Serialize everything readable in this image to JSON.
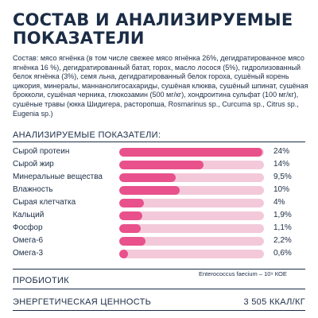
{
  "title": "СОСТАВ И АНАЛИЗИРУЕМЫЕ ПОКАЗАТЕЛИ",
  "composition": "Состав: мясо ягнёнка (в том числе свежее мясо ягнёнка 26%, дегидратированное мясо ягнёнка 16 %), дегидратированный батат, горох, масло лосося (5%), гидролизованный белок ягнёнка (3%), семя льна, дегидратированный белок гороха, сушёный корень цикория, минералы, маннанолигосахариды, сушёная клюква, сушёный шпинат, сушёная брокколи, сушёная черника, глюкозамин (500 мг/кг), хондроитина сульфат (100 мг/кг), сушёные травы (юкка Шидигера, расторопша, Rosmarinus sp., Curcuma sp., Citrus sp., Eugenia sp.)",
  "analysis": {
    "heading": "АНАЛИЗИРУЕМЫЕ ПОКАЗАТЕЛИ:",
    "items": [
      {
        "label": "Сырой протеин",
        "value": "24%",
        "fill": 0.99
      },
      {
        "label": "Сырой жир",
        "value": "14%",
        "fill": 0.58
      },
      {
        "label": "Минеральные вещества",
        "value": "9,5%",
        "fill": 0.39
      },
      {
        "label": "Влажность",
        "value": "10%",
        "fill": 0.42
      },
      {
        "label": "Сырая клетчатка",
        "value": "4%",
        "fill": 0.17
      },
      {
        "label": "Кальций",
        "value": "1,9%",
        "fill": 0.16
      },
      {
        "label": "Фосфор",
        "value": "1,1%",
        "fill": 0.15
      },
      {
        "label": "Омега-6",
        "value": "2,2%",
        "fill": 0.18
      },
      {
        "label": "Омега-3",
        "value": "0,6%",
        "fill": 0.06
      }
    ],
    "colors": {
      "fill": "#e8518b",
      "track": "#f3c9d9"
    }
  },
  "probiotic": {
    "label": "ПРОБИОТИК",
    "value": "Enterococcus faecium – 10⁹ КОЕ"
  },
  "energy": {
    "label": "ЭНЕРГЕТИЧЕСКАЯ ЦЕННОСТЬ",
    "value": "3 505 ККАЛ/КГ"
  }
}
